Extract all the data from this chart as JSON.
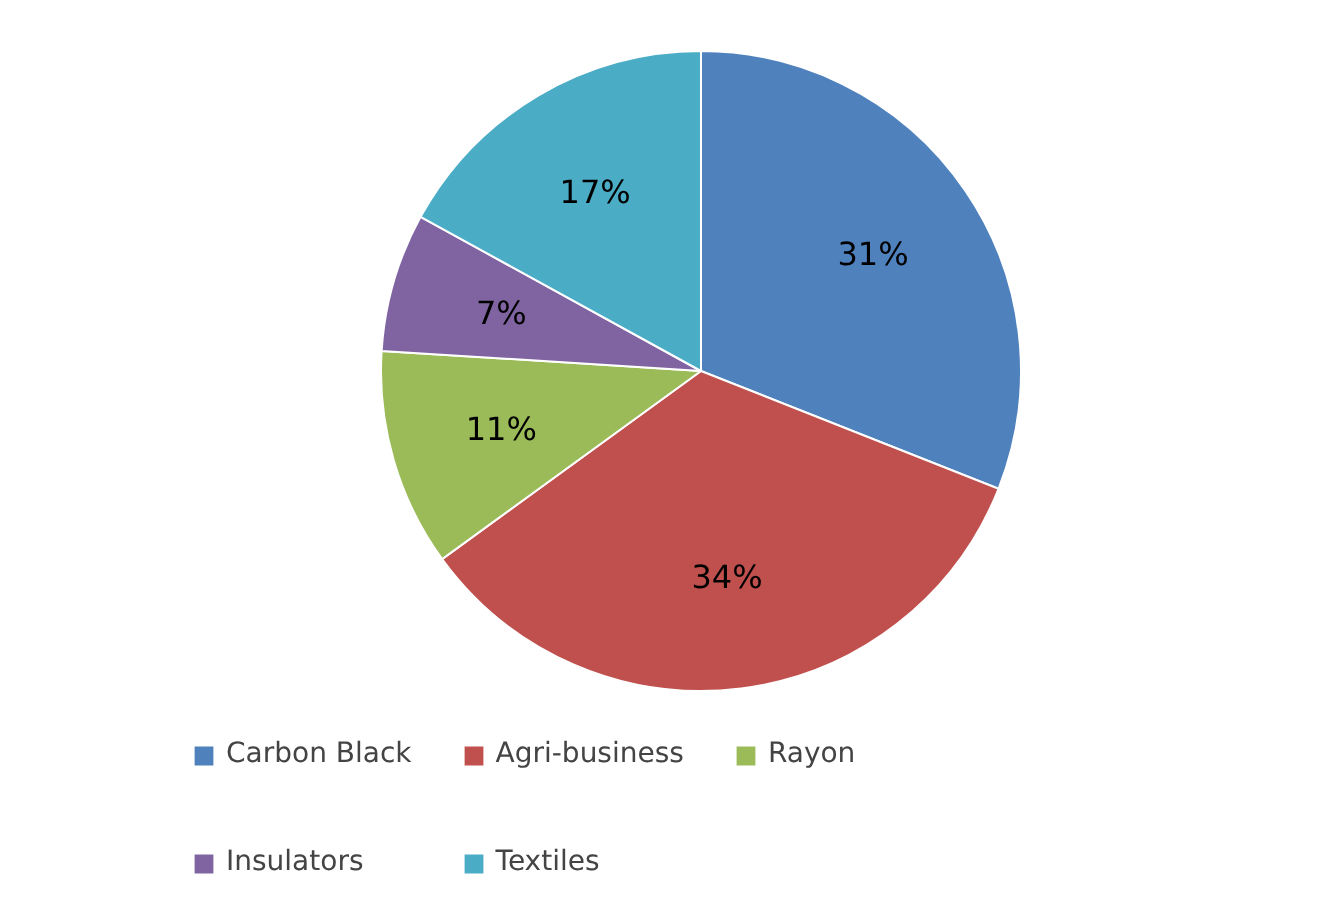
{
  "chart_data": {
    "type": "pie",
    "categories": [
      "Carbon Black",
      "Agri-business",
      "Rayon",
      "Insulators",
      "Textiles"
    ],
    "values": [
      31,
      34,
      11,
      7,
      17
    ],
    "colors": [
      "#4f81bd",
      "#c0504d",
      "#9bbb59",
      "#8064a2",
      "#4bacc6"
    ],
    "value_labels": [
      "31%",
      "34%",
      "11%",
      "7%",
      "17%"
    ],
    "legend": "bottom"
  }
}
